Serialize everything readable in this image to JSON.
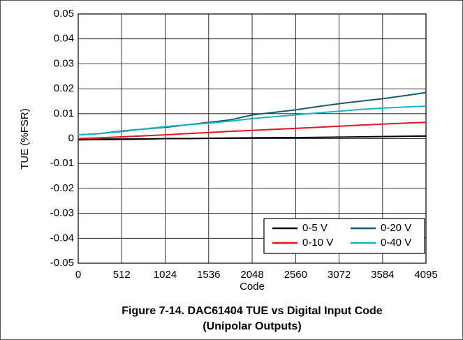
{
  "chart_data": {
    "type": "line",
    "title": "Figure 7-14. DAC61404 TUE vs Digital Input Code",
    "subtitle": "(Unipolar Outputs)",
    "x_label": "Code",
    "y_label": "TUE (%FSR)",
    "x": [
      0,
      256,
      512,
      768,
      1024,
      1280,
      1536,
      1792,
      2048,
      2304,
      2560,
      2816,
      3072,
      3328,
      3584,
      3840,
      4095
    ],
    "series": [
      {
        "name": "0-5 V",
        "color": "#000000",
        "values": [
          -0.0005,
          -0.0004,
          -0.0003,
          -0.0002,
          0,
          0,
          0.0001,
          0.0002,
          0.0003,
          0.0004,
          0.0004,
          0.0005,
          0.0006,
          0.0007,
          0.0008,
          0.0009,
          0.001
        ]
      },
      {
        "name": "0-10 V",
        "color": "#e8141c",
        "values": [
          0,
          0.0003,
          0.0007,
          0.0011,
          0.0015,
          0.002,
          0.0024,
          0.0029,
          0.0033,
          0.0037,
          0.0041,
          0.0045,
          0.005,
          0.0054,
          0.0058,
          0.0062,
          0.0065
        ]
      },
      {
        "name": "0-20 V",
        "color": "#1b5a6b",
        "values": [
          0.0015,
          0.002,
          0.003,
          0.0038,
          0.0045,
          0.0055,
          0.0065,
          0.0075,
          0.0095,
          0.0105,
          0.0115,
          0.0128,
          0.014,
          0.015,
          0.016,
          0.0172,
          0.0185
        ]
      },
      {
        "name": "0-40 V",
        "color": "#14b4c8",
        "values": [
          0.0015,
          0.002,
          0.0028,
          0.0038,
          0.0048,
          0.0055,
          0.0062,
          0.007,
          0.008,
          0.0088,
          0.0095,
          0.0103,
          0.011,
          0.0117,
          0.0122,
          0.0127,
          0.013
        ]
      }
    ],
    "xlim": [
      0,
      4095
    ],
    "xticks": [
      0,
      512,
      1024,
      1536,
      2048,
      2560,
      3072,
      3584,
      4095
    ],
    "ylim": [
      -0.05,
      0.05
    ],
    "yticks": [
      -0.05,
      -0.04,
      -0.03,
      -0.02,
      -0.01,
      0,
      0.01,
      0.02,
      0.03,
      0.04,
      0.05
    ],
    "grid": true,
    "legend": "lower right"
  }
}
